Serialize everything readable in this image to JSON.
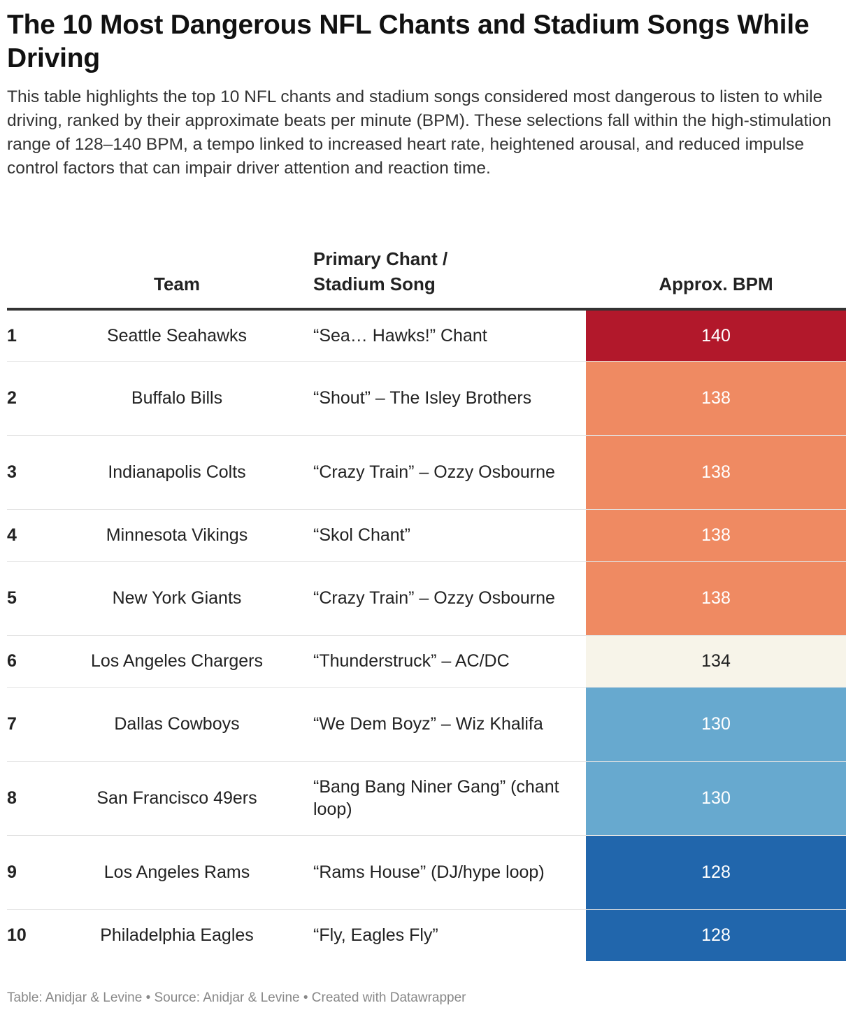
{
  "title": "The 10 Most Dangerous NFL Chants and Stadium Songs While Driving",
  "description": "This table highlights the top 10 NFL chants and stadium songs considered most dangerous to listen to while driving, ranked by their approximate beats per minute (BPM). These selections fall within the high-stimulation range of 128–140 BPM, a tempo linked to increased heart rate, heightened arousal, and reduced impulse control factors that can impair driver attention and reaction time.",
  "footer": "Table: Anidjar & Levine • Source: Anidjar & Levine • Created with Datawrapper",
  "chart_data": {
    "type": "table",
    "columns": [
      "",
      "Team",
      "Primary Chant / Stadium Song",
      "Approx. BPM"
    ],
    "rows": [
      {
        "rank": "1",
        "team": "Seattle Seahawks",
        "song": "“Sea… Hawks!” Chant",
        "bpm": 140,
        "color": "#b2182b",
        "text_color": "#ffffff"
      },
      {
        "rank": "2",
        "team": "Buffalo Bills",
        "song": "“Shout” – The Isley Brothers",
        "bpm": 138,
        "color": "#ef8a62",
        "text_color": "#ffffff"
      },
      {
        "rank": "3",
        "team": "Indianapolis Colts",
        "song": "“Crazy Train” – Ozzy Osbourne",
        "bpm": 138,
        "color": "#ef8a62",
        "text_color": "#ffffff"
      },
      {
        "rank": "4",
        "team": "Minnesota Vikings",
        "song": "“Skol Chant”",
        "bpm": 138,
        "color": "#ef8a62",
        "text_color": "#ffffff"
      },
      {
        "rank": "5",
        "team": "New York Giants",
        "song": "“Crazy Train” – Ozzy Osbourne",
        "bpm": 138,
        "color": "#ef8a62",
        "text_color": "#ffffff"
      },
      {
        "rank": "6",
        "team": "Los Angeles Chargers",
        "song": "“Thunderstruck” – AC/DC",
        "bpm": 134,
        "color": "#f7f4e9",
        "text_color": "#222222"
      },
      {
        "rank": "7",
        "team": "Dallas Cowboys",
        "song": "“We Dem Boyz” – Wiz Khalifa",
        "bpm": 130,
        "color": "#67a9cf",
        "text_color": "#ffffff"
      },
      {
        "rank": "8",
        "team": "San Francisco 49ers",
        "song": "“Bang Bang Niner Gang” (chant loop)",
        "bpm": 130,
        "color": "#67a9cf",
        "text_color": "#ffffff"
      },
      {
        "rank": "9",
        "team": "Los Angeles Rams",
        "song": "“Rams House” (DJ/hype loop)",
        "bpm": 128,
        "color": "#2166ac",
        "text_color": "#ffffff"
      },
      {
        "rank": "10",
        "team": "Philadelphia Eagles",
        "song": "“Fly, Eagles Fly”",
        "bpm": 128,
        "color": "#2166ac",
        "text_color": "#ffffff"
      }
    ]
  }
}
